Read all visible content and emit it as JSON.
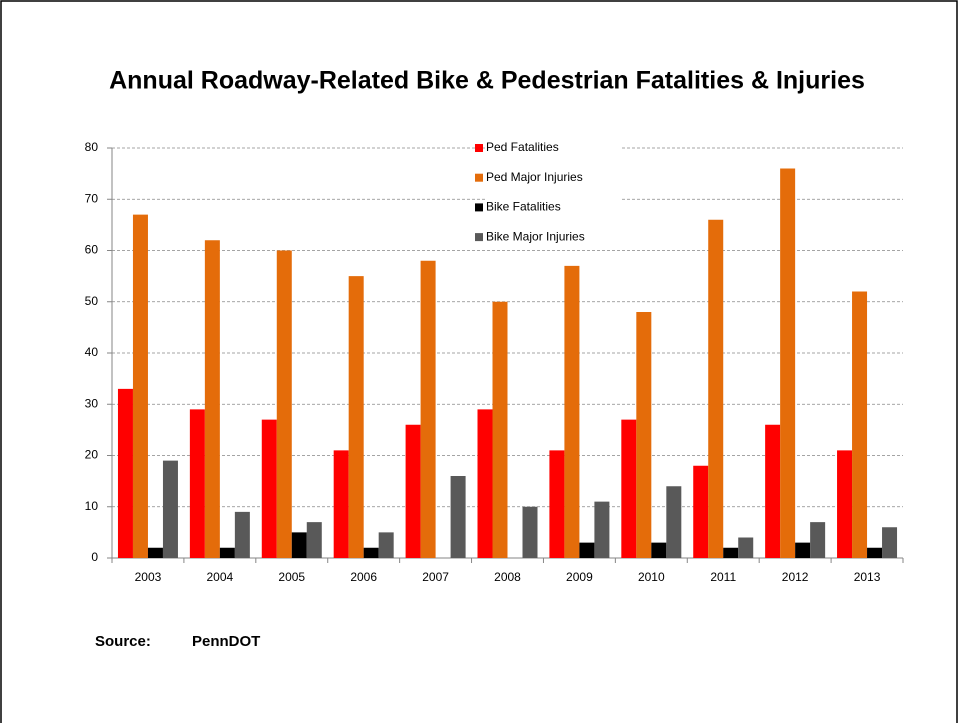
{
  "chart_data": {
    "type": "bar",
    "title": "Annual Roadway-Related Bike & Pedestrian Fatalities & Injuries",
    "categories": [
      "2003",
      "2004",
      "2005",
      "2006",
      "2007",
      "2008",
      "2009",
      "2010",
      "2011",
      "2012",
      "2013"
    ],
    "series": [
      {
        "name": "Ped Fatalities",
        "color": "#ff0000",
        "values": [
          33,
          29,
          27,
          21,
          26,
          29,
          21,
          27,
          18,
          26,
          21
        ]
      },
      {
        "name": "Ped Major Injuries",
        "color": "#e46c0a",
        "values": [
          67,
          62,
          60,
          55,
          58,
          50,
          57,
          48,
          66,
          76,
          52
        ]
      },
      {
        "name": "Bike Fatalities",
        "color": "#000000",
        "values": [
          2,
          2,
          5,
          2,
          0,
          0,
          3,
          3,
          2,
          3,
          2
        ]
      },
      {
        "name": "Bike Major Injuries",
        "color": "#595959",
        "values": [
          19,
          9,
          7,
          5,
          16,
          10,
          11,
          14,
          4,
          7,
          6
        ]
      }
    ],
    "ylim": [
      0,
      80
    ],
    "yticks": [
      0,
      10,
      20,
      30,
      40,
      50,
      60,
      70,
      80
    ],
    "grid": true,
    "source_label": "Source:",
    "source": "PennDOT"
  }
}
